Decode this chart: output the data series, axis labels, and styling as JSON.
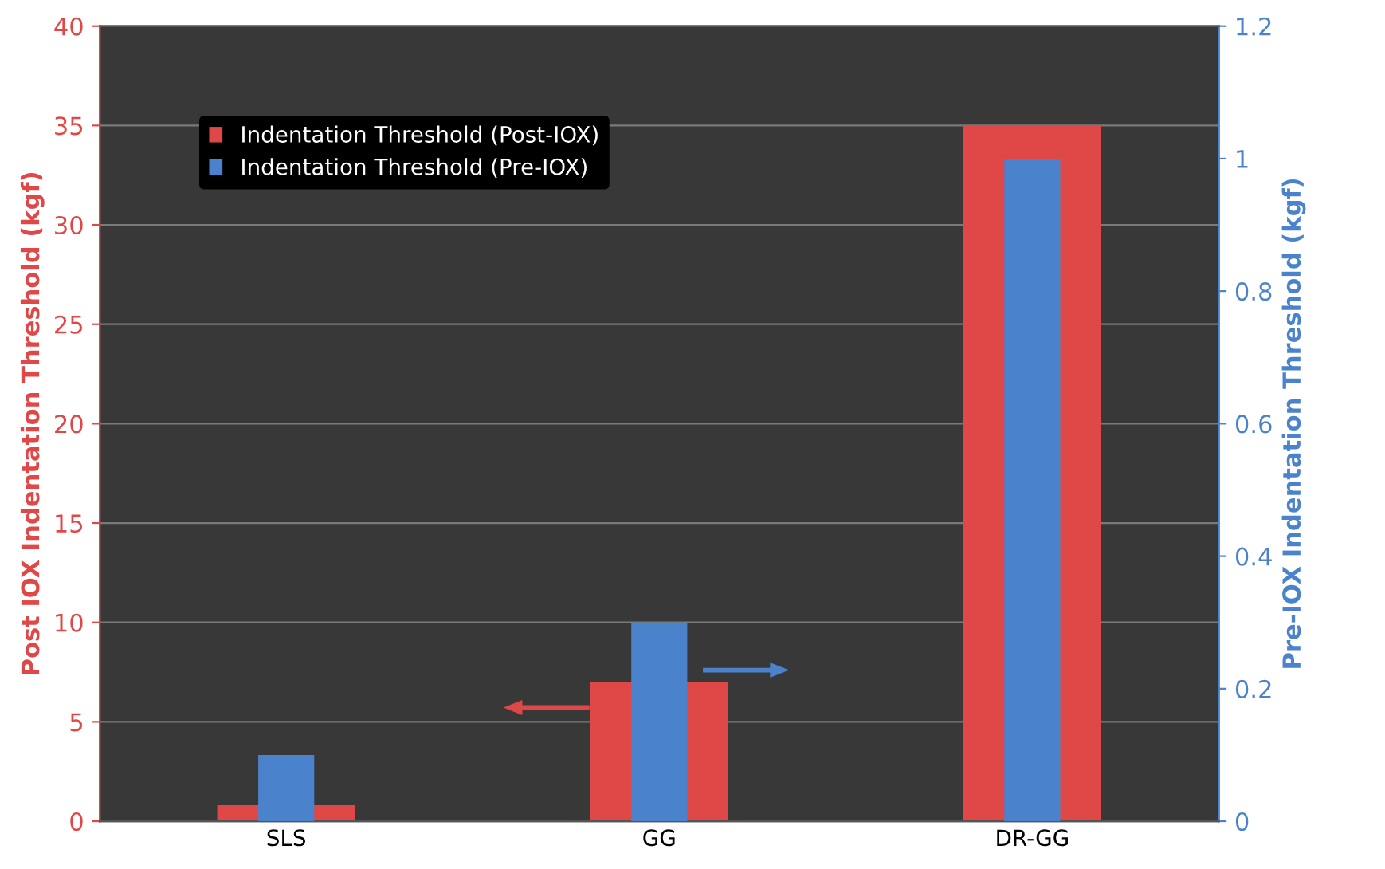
{
  "chart_data": {
    "type": "bar",
    "categories": [
      "SLS",
      "GG",
      "DR-GG"
    ],
    "ylabel": "Post IOX Indentation Threshold (kgf)",
    "y2label": "Pre-IOX Indentation Threshold (kgf)",
    "ylim": [
      0,
      40
    ],
    "yticks": [
      0,
      5,
      10,
      15,
      20,
      25,
      30,
      35,
      40
    ],
    "y2lim": [
      0,
      1.2
    ],
    "y2ticks": [
      0,
      {
        "value": 0.2,
        "label": "0.2"
      },
      {
        "value": 0.4,
        "label": "0.4"
      },
      {
        "value": 0.6,
        "label": "0.6"
      },
      {
        "value": 0.8,
        "label": "0.8"
      },
      1,
      {
        "value": 1.2,
        "label": "1.2"
      }
    ],
    "series": [
      {
        "name": "Indentation Threshold (Post-IOX)",
        "color": "#e04848",
        "values": [
          0.8,
          7,
          35
        ],
        "axis": "y"
      },
      {
        "name": "Indentation Threshold (Pre-IOX)",
        "color": "#4a82cc",
        "values": [
          0.1,
          0.3,
          1.0
        ],
        "axis": "y2"
      }
    ],
    "grid": "y",
    "legend": "top left"
  }
}
